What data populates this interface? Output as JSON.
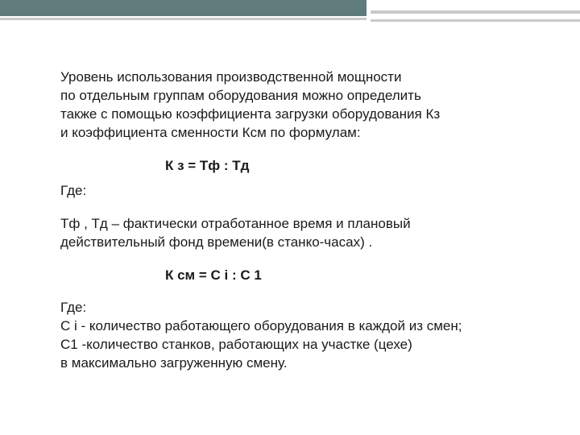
{
  "colors": {
    "header_bar": "#5f7b7b",
    "accent_lines": "#c9c9c9",
    "text": "#1a1a1a",
    "background": "#ffffff"
  },
  "typography": {
    "body_fontsize": 17,
    "body_lineheight": 1.35,
    "formula_fontweight": "bold"
  },
  "intro": {
    "line1": "Уровень использования производственной мощности",
    "line2": "по отдельным группам оборудования можно определить",
    "line3": "также  с  помощью  коэффициента загрузки  оборудования Кз",
    "line4": "и коэффициента сменности Ксм по формулам:"
  },
  "formula1": "К з = Тф : Тд",
  "where1": "Где:",
  "explain1": {
    "line1": "Тф , Тд –   фактически   отработанное   время и плановый",
    "line2": "действительный фонд времени(в станко-часах) ."
  },
  "formula2": "К см = С i : С 1",
  "where2": {
    "line1": "Где:",
    "line2": "С i - количество работающего оборудования в каждой из смен;",
    "line3": "С1 -количество станков, работающих на участке (цехе)",
    "line4": "в максимально загруженную смену."
  }
}
